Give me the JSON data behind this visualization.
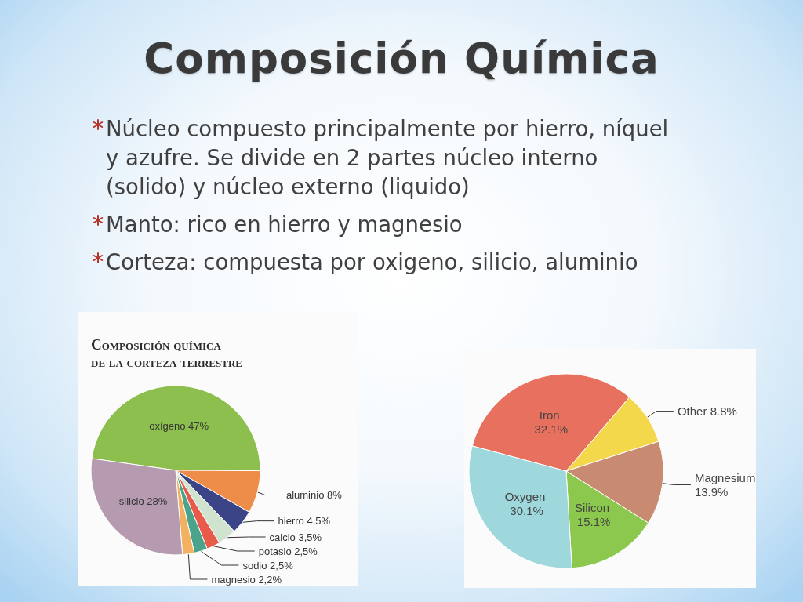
{
  "chart_data": [
    {
      "type": "other",
      "title": "Composición Química",
      "annotations": [
        "Núcleo compuesto principalmente por hierro, níquel y azufre. Se divide en 2 partes núcleo interno (solido) y núcleo externo (liquido)",
        "Manto: rico en hierro y magnesio",
        "Corteza: compuesta por oxigeno, silicio, aluminio"
      ]
    },
    {
      "type": "pie",
      "title": "Composición química\nde la corteza terrestre",
      "categories": [
        "oxígeno",
        "aluminio",
        "hierro",
        "calcio",
        "potasio",
        "sodio",
        "magnesio",
        "silicio"
      ],
      "values": [
        47,
        8,
        4.5,
        3.5,
        2.5,
        2.5,
        2.2,
        28
      ],
      "value_labels": [
        "47%",
        "8%",
        "4,5%",
        "3,5%",
        "2,5%",
        "2,5%",
        "2,2%",
        "28%"
      ],
      "colors": [
        "#8dbf4e",
        "#ee8c4a",
        "#3b4486",
        "#cfe3cf",
        "#e85a4a",
        "#4aa38a",
        "#f2b060",
        "#b59ab0"
      ]
    },
    {
      "type": "pie",
      "categories": [
        "Iron",
        "Other",
        "Magnesium",
        "Silicon",
        "Oxygen"
      ],
      "values": [
        32.1,
        8.8,
        13.9,
        15.1,
        30.1
      ],
      "value_labels": [
        "32.1%",
        "8.8%",
        "13.9%",
        "15.1%",
        "30.1%"
      ],
      "colors": [
        "#e8705e",
        "#f2d84a",
        "#c98a72",
        "#8cc84e",
        "#9ed8dc"
      ]
    }
  ]
}
